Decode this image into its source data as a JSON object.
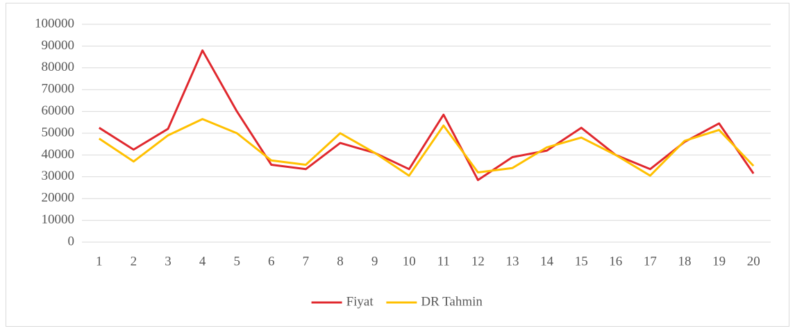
{
  "chart_data": {
    "type": "line",
    "categories": [
      "1",
      "2",
      "3",
      "4",
      "5",
      "6",
      "7",
      "8",
      "9",
      "10",
      "11",
      "12",
      "13",
      "14",
      "15",
      "16",
      "17",
      "18",
      "19",
      "20"
    ],
    "series": [
      {
        "name": "Fiyat",
        "color": "#e0282e",
        "values": [
          52500,
          42500,
          52000,
          88000,
          60000,
          35500,
          33500,
          45500,
          41000,
          33500,
          58500,
          28500,
          39000,
          42000,
          52500,
          40000,
          33500,
          46000,
          54500,
          31500
        ]
      },
      {
        "name": "DR Tahmin",
        "color": "#ffc000",
        "values": [
          47500,
          37000,
          49000,
          56500,
          50000,
          37500,
          35500,
          50000,
          41000,
          30500,
          53500,
          32000,
          34000,
          43500,
          48000,
          40000,
          30500,
          46500,
          51500,
          35000
        ]
      }
    ],
    "ylim": [
      0,
      100000
    ],
    "yticks": [
      0,
      10000,
      20000,
      30000,
      40000,
      50000,
      60000,
      70000,
      80000,
      90000,
      100000
    ],
    "grid": true,
    "legend": "bottom"
  }
}
